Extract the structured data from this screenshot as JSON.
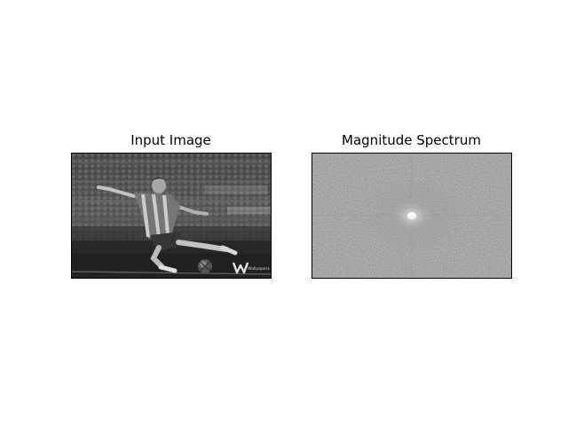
{
  "figure": {
    "background": "#ffffff",
    "colormap": "gray"
  },
  "panels": [
    {
      "title": "Input Image",
      "content": "grayscale photograph of a soccer player kicking a ball in a stadium",
      "watermark": "Wallpapers"
    },
    {
      "title": "Magnitude Spectrum",
      "content": "noisy gray field with a bright spot at the center and faint horizontal and vertical streaks"
    }
  ]
}
